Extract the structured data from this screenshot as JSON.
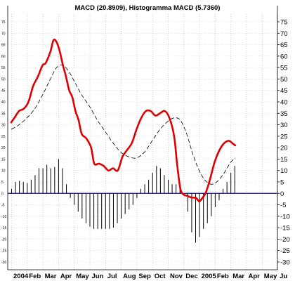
{
  "chart_data": {
    "type": "line",
    "title": "MACD (20.8909), Histogramma MACD (5.7360)",
    "ylim": [
      -30,
      75
    ],
    "y_ticks": [
      -30,
      -25,
      -20,
      -15,
      -10,
      -5,
      0,
      5,
      10,
      15,
      20,
      25,
      30,
      35,
      40,
      45,
      50,
      55,
      60,
      65,
      70,
      75
    ],
    "x_tick_labels": [
      "2004",
      "Feb",
      "Mar",
      "Apr",
      "May",
      "Jun",
      "Jul",
      "Aug",
      "Sep",
      "Oct",
      "Nov",
      "Dec",
      "2005",
      "Feb",
      "Mar",
      "Apr",
      "May",
      "Ju"
    ],
    "x_tick_positions": [
      0,
      1,
      2,
      3,
      4,
      5,
      6,
      7,
      8,
      9,
      10,
      11,
      12,
      13,
      14,
      15,
      16,
      17
    ],
    "xlim": [
      0,
      17.5
    ],
    "grid": true,
    "colors": {
      "macd": "#e00000",
      "signal": "#000000",
      "histogram": "#000000",
      "zero_line": "#0000cc"
    },
    "series": [
      {
        "name": "MACD",
        "style": "thick-red",
        "x": [
          0,
          0.2,
          0.5,
          0.8,
          1.1,
          1.4,
          1.7,
          2.0,
          2.2,
          2.5,
          2.7,
          2.9,
          3.1,
          3.3,
          3.5,
          3.7,
          3.9,
          4.1,
          4.3,
          4.5,
          4.8,
          5.1,
          5.3,
          5.6,
          5.9,
          6.2,
          6.5,
          6.8,
          7.1,
          7.4,
          7.7,
          8.0,
          8.3,
          8.6,
          8.9,
          9.2,
          9.5,
          9.8,
          10.1,
          10.4,
          10.6,
          10.8,
          11.0,
          11.2,
          11.5,
          11.8,
          12.0,
          12.2,
          12.4,
          12.6,
          12.8,
          13.0,
          13.3,
          13.6,
          13.9,
          14.1,
          14.3
        ],
        "values": [
          31,
          33,
          36,
          37,
          40,
          47,
          51,
          56,
          57,
          62,
          67,
          66,
          62,
          56,
          51,
          45,
          42,
          36,
          32,
          26,
          24,
          20,
          13,
          13,
          12,
          10,
          11,
          10,
          16,
          19,
          22,
          28,
          33,
          36,
          36,
          34,
          35,
          36,
          33,
          25,
          12,
          2,
          -0.5,
          -1,
          -1.8,
          -2,
          -3.5,
          -2,
          0,
          4,
          9,
          14,
          19,
          22,
          23,
          22,
          21
        ]
      },
      {
        "name": "Signal",
        "style": "dashed-black",
        "x": [
          0,
          0.5,
          1.0,
          1.5,
          2.0,
          2.5,
          2.9,
          3.3,
          3.7,
          4.1,
          4.5,
          5.0,
          5.5,
          6.0,
          6.5,
          7.0,
          7.5,
          8.0,
          8.5,
          9.0,
          9.5,
          10.0,
          10.4,
          10.8,
          11.2,
          11.6,
          12.0,
          12.4,
          12.8,
          13.2,
          13.6,
          14.0,
          14.3
        ],
        "values": [
          28,
          30,
          33,
          37,
          43,
          50,
          55,
          56,
          53,
          48,
          43,
          38,
          32,
          27,
          22,
          18,
          16,
          15.5,
          18,
          23,
          28,
          31.5,
          33,
          32,
          26,
          17,
          10,
          5.5,
          4,
          5.5,
          9,
          13.5,
          15.5
        ]
      },
      {
        "name": "Histogram",
        "style": "bars",
        "x": [
          0.0,
          0.25,
          0.5,
          0.75,
          1.0,
          1.25,
          1.5,
          1.75,
          2.0,
          2.25,
          2.5,
          2.75,
          3.0,
          3.25,
          3.5,
          3.75,
          4.0,
          4.25,
          4.5,
          4.75,
          5.0,
          5.25,
          5.5,
          5.75,
          6.0,
          6.25,
          6.5,
          6.75,
          7.0,
          7.25,
          7.5,
          7.75,
          8.0,
          8.25,
          8.5,
          8.75,
          9.0,
          9.25,
          9.5,
          9.75,
          10.0,
          10.25,
          10.5,
          10.75,
          11.0,
          11.25,
          11.5,
          11.75,
          12.0,
          12.25,
          12.5,
          12.75,
          13.0,
          13.25,
          13.5,
          13.75,
          14.0,
          14.25
        ],
        "values": [
          2,
          5,
          5.5,
          5,
          4.5,
          6,
          8,
          11,
          11,
          12.5,
          11,
          11.5,
          15,
          11,
          4,
          -2,
          -5,
          -8,
          -11,
          -13,
          -14.5,
          -15.5,
          -15.5,
          -15.5,
          -15.5,
          -15.5,
          -15,
          -13,
          -11,
          -9,
          -7,
          -5,
          -2,
          2,
          4,
          6,
          9,
          12,
          11,
          8,
          6,
          4,
          4,
          3,
          0,
          -8,
          -17,
          -21.5,
          -19,
          -15.5,
          -13,
          -10,
          -6,
          -3,
          2,
          5,
          9,
          12
        ]
      }
    ]
  }
}
